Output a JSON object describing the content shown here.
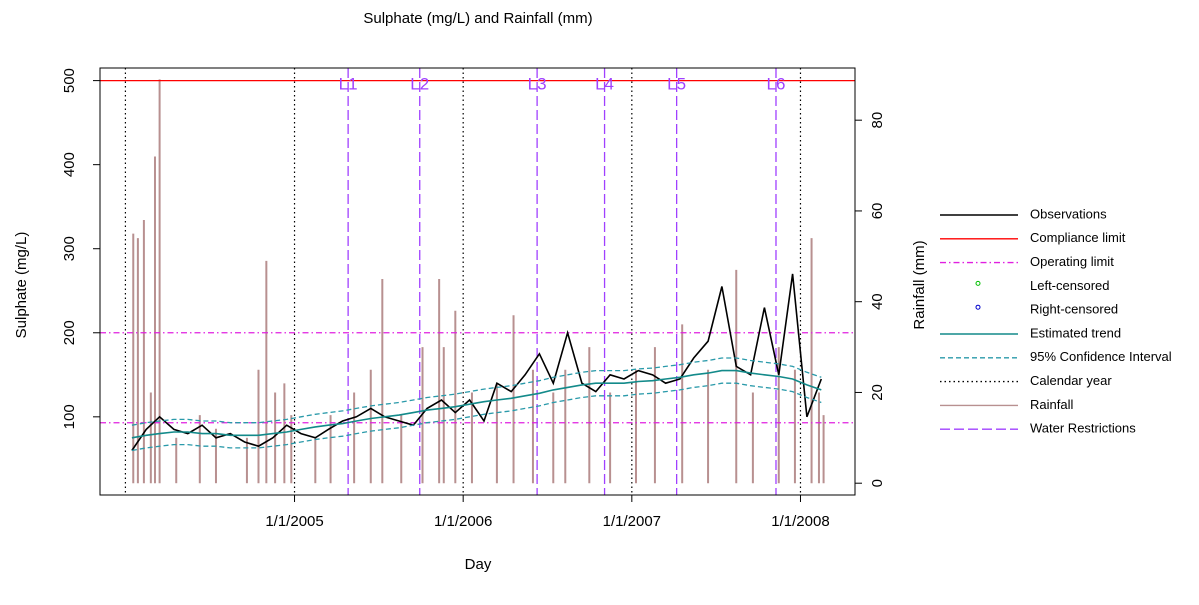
{
  "chart_data": {
    "type": "line",
    "title": "Sulphate (mg/L) and Rainfall (mm)",
    "xlabel": "Day",
    "ylabel": "Sulphate (mg/L)",
    "y2label": "Rainfall (mm)",
    "xlim": [
      "2003-11-07",
      "2008-04-28"
    ],
    "xticks": [
      {
        "value": "2005-01-01",
        "label": "1/1/2005"
      },
      {
        "value": "2006-01-01",
        "label": "1/1/2006"
      },
      {
        "value": "2007-01-01",
        "label": "1/1/2007"
      },
      {
        "value": "2008-01-01",
        "label": "1/1/2008"
      }
    ],
    "ylim": [
      7,
      515
    ],
    "yticks": [
      100,
      200,
      300,
      400,
      500
    ],
    "y2lim": [
      -2.6,
      91.5
    ],
    "y2ticks": [
      0,
      20,
      40,
      60,
      80
    ],
    "x": [
      "2004-01-15",
      "2004-02-15",
      "2004-03-15",
      "2004-04-15",
      "2004-05-15",
      "2004-06-15",
      "2004-07-15",
      "2004-08-15",
      "2004-09-15",
      "2004-10-15",
      "2004-11-15",
      "2004-12-15",
      "2005-01-15",
      "2005-02-15",
      "2005-03-15",
      "2005-04-15",
      "2005-05-15",
      "2005-06-15",
      "2005-07-15",
      "2005-08-15",
      "2005-09-15",
      "2005-10-15",
      "2005-11-15",
      "2005-12-15",
      "2006-01-15",
      "2006-02-15",
      "2006-03-15",
      "2006-04-15",
      "2006-05-15",
      "2006-06-15",
      "2006-07-15",
      "2006-08-15",
      "2006-09-15",
      "2006-10-15",
      "2006-11-15",
      "2006-12-15",
      "2007-01-15",
      "2007-02-15",
      "2007-03-15",
      "2007-04-15",
      "2007-05-15",
      "2007-06-15",
      "2007-07-15",
      "2007-08-15",
      "2007-09-15",
      "2007-10-15",
      "2007-11-15",
      "2007-12-15",
      "2008-01-15",
      "2008-02-15"
    ],
    "series": [
      {
        "name": "Observations",
        "color": "#000000",
        "style": "solid",
        "values": [
          60,
          85,
          100,
          85,
          80,
          90,
          75,
          80,
          70,
          65,
          75,
          90,
          80,
          75,
          85,
          95,
          100,
          110,
          100,
          95,
          90,
          110,
          120,
          105,
          120,
          95,
          140,
          130,
          150,
          175,
          140,
          200,
          140,
          130,
          150,
          145,
          155,
          150,
          140,
          145,
          170,
          190,
          255,
          160,
          150,
          230,
          150,
          270,
          100,
          145
        ]
      },
      {
        "name": "Left-censored",
        "color": "#00c000",
        "style": "point",
        "values": [
          null,
          null,
          null,
          null,
          null,
          null,
          null,
          null,
          null,
          null,
          null,
          null,
          null,
          null,
          null,
          null,
          null,
          null,
          null,
          null,
          null,
          null,
          null,
          null,
          null,
          null,
          null,
          null,
          null,
          null,
          null,
          null,
          null,
          null,
          null,
          null,
          null,
          null,
          null,
          null,
          null,
          null,
          null,
          null,
          null,
          null,
          null,
          null,
          null,
          null
        ]
      },
      {
        "name": "Right-censored",
        "color": "#0000cc",
        "style": "point",
        "values": [
          null,
          null,
          null,
          null,
          null,
          null,
          null,
          null,
          null,
          null,
          null,
          null,
          null,
          null,
          null,
          null,
          null,
          null,
          null,
          null,
          null,
          null,
          null,
          null,
          null,
          null,
          null,
          null,
          null,
          null,
          null,
          null,
          null,
          null,
          null,
          null,
          null,
          null,
          null,
          null,
          null,
          null,
          null,
          null,
          null,
          null,
          null,
          null,
          null,
          null
        ]
      },
      {
        "name": "Estimated trend",
        "color": "#138a8a",
        "style": "solid",
        "values": [
          75,
          78,
          80,
          82,
          82,
          80,
          80,
          78,
          78,
          78,
          80,
          82,
          85,
          88,
          90,
          92,
          95,
          98,
          100,
          102,
          105,
          108,
          110,
          112,
          115,
          118,
          120,
          122,
          125,
          128,
          132,
          135,
          138,
          140,
          140,
          140,
          142,
          143,
          145,
          147,
          150,
          152,
          155,
          155,
          152,
          150,
          148,
          145,
          138,
          132
        ]
      },
      {
        "name": "95% Confidence Interval",
        "color": "#2a9aaa",
        "style": "dashed",
        "upper": [
          90,
          93,
          95,
          97,
          97,
          95,
          95,
          93,
          93,
          93,
          95,
          97,
          100,
          103,
          105,
          107,
          110,
          113,
          115,
          117,
          120,
          123,
          125,
          127,
          130,
          133,
          135,
          137,
          140,
          143,
          147,
          150,
          153,
          155,
          155,
          155,
          157,
          158,
          160,
          162,
          165,
          167,
          170,
          170,
          167,
          165,
          163,
          160,
          153,
          147
        ],
        "lower": [
          60,
          63,
          65,
          67,
          67,
          65,
          65,
          63,
          63,
          63,
          65,
          67,
          70,
          73,
          75,
          77,
          80,
          83,
          85,
          87,
          90,
          93,
          95,
          97,
          100,
          103,
          105,
          107,
          110,
          113,
          117,
          120,
          123,
          125,
          125,
          125,
          127,
          128,
          130,
          132,
          135,
          137,
          140,
          140,
          137,
          135,
          133,
          130,
          123,
          117
        ]
      }
    ],
    "compliance_limit": {
      "name": "Compliance limit",
      "color": "#ff0000",
      "value": 500
    },
    "operating_limit": {
      "name": "Operating limit",
      "color": "#e020e0",
      "values": [
        200,
        93
      ]
    },
    "calendar_year": {
      "name": "Calendar year",
      "color": "#000000",
      "x": [
        "2004-01-01",
        "2005-01-01",
        "2006-01-01",
        "2007-01-01",
        "2008-01-01"
      ]
    },
    "rainfall": {
      "name": "Rainfall",
      "color": "#b89090",
      "axis": "y2",
      "x": [
        "2004-01-18",
        "2004-01-28",
        "2004-02-10",
        "2004-02-25",
        "2004-03-05",
        "2004-03-15",
        "2004-04-20",
        "2004-06-10",
        "2004-07-15",
        "2004-09-20",
        "2004-10-15",
        "2004-11-01",
        "2004-11-20",
        "2004-12-10",
        "2004-12-25",
        "2005-02-15",
        "2005-03-20",
        "2005-05-10",
        "2005-06-15",
        "2005-07-10",
        "2005-08-20",
        "2005-10-05",
        "2005-11-10",
        "2005-11-20",
        "2005-12-15",
        "2006-01-20",
        "2006-03-15",
        "2006-04-20",
        "2006-06-01",
        "2006-07-15",
        "2006-08-10",
        "2006-10-01",
        "2006-11-15",
        "2007-01-10",
        "2007-02-20",
        "2007-04-20",
        "2007-06-15",
        "2007-08-15",
        "2007-09-20",
        "2007-11-15",
        "2007-12-20",
        "2008-01-25",
        "2008-02-10",
        "2008-02-20"
      ],
      "values": [
        55,
        54,
        58,
        20,
        72,
        89,
        10,
        15,
        12,
        10,
        25,
        49,
        20,
        22,
        15,
        10,
        15,
        20,
        25,
        45,
        15,
        30,
        45,
        30,
        38,
        20,
        22,
        37,
        25,
        20,
        25,
        30,
        20,
        25,
        30,
        35,
        25,
        47,
        20,
        30,
        25,
        54,
        20,
        15
      ]
    },
    "water_restrictions": {
      "name": "Water Restrictions",
      "color": "#a040ff",
      "x": [
        "2005-04-27",
        "2005-09-29",
        "2006-06-10",
        "2006-11-03",
        "2007-04-08",
        "2007-11-09"
      ],
      "labels": [
        "L1",
        "L2",
        "L3",
        "L4",
        "L5",
        "L6"
      ]
    }
  }
}
